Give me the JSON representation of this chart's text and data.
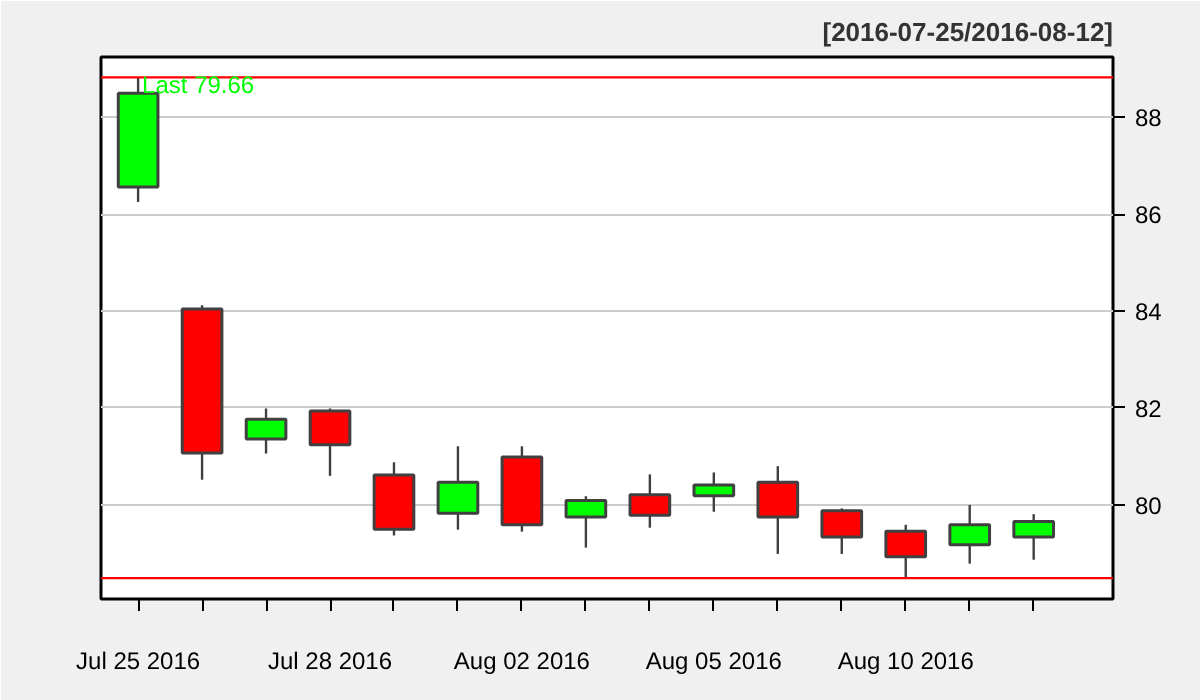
{
  "chart_data": {
    "type": "candlestick",
    "subtitle": "[2016-07-25/2016-08-12]",
    "categories": [
      "Jul 25 2016",
      null,
      null,
      "Jul 28 2016",
      null,
      null,
      "Aug 02 2016",
      null,
      null,
      "Aug 05 2016",
      null,
      null,
      "Aug 10 2016",
      null,
      null
    ],
    "ohlc": [
      [
        86.56,
        88.82,
        86.25,
        88.49
      ],
      [
        84.04,
        84.12,
        80.52,
        81.07
      ],
      [
        81.36,
        81.99,
        81.06,
        81.77
      ],
      [
        81.94,
        81.99,
        80.6,
        81.24
      ],
      [
        80.62,
        80.88,
        79.37,
        79.5
      ],
      [
        79.83,
        81.21,
        79.49,
        80.47
      ],
      [
        80.99,
        81.21,
        79.45,
        79.59
      ],
      [
        79.75,
        80.18,
        79.12,
        80.09
      ],
      [
        80.21,
        80.63,
        79.53,
        79.79
      ],
      [
        80.19,
        80.67,
        79.86,
        80.41
      ],
      [
        80.47,
        80.8,
        78.99,
        79.75
      ],
      [
        79.88,
        79.93,
        78.99,
        79.34
      ],
      [
        79.46,
        79.59,
        78.49,
        78.93
      ],
      [
        79.18,
        80.0,
        78.79,
        79.59
      ],
      [
        79.34,
        79.81,
        78.87,
        79.66
      ]
    ],
    "colors": [
      "#00ff00",
      "#ff0000",
      "#00ff00",
      "#ff0000",
      "#ff0000",
      "#00ff00",
      "#ff0000",
      "#00ff00",
      "#ff0000",
      "#00ff00",
      "#ff0000",
      "#ff0000",
      "#ff0000",
      "#00ff00",
      "#00ff00"
    ],
    "ylim": [
      78.06,
      89.24
    ],
    "yticks": [
      80,
      82,
      84,
      86,
      88
    ],
    "grid": "y",
    "ref_lines": [
      {
        "axis": "y",
        "value": 88.82,
        "color": "#ff0000"
      },
      {
        "axis": "y",
        "value": 78.49,
        "color": "#ff0000"
      }
    ],
    "annotations": [
      "Last 79.66"
    ]
  }
}
